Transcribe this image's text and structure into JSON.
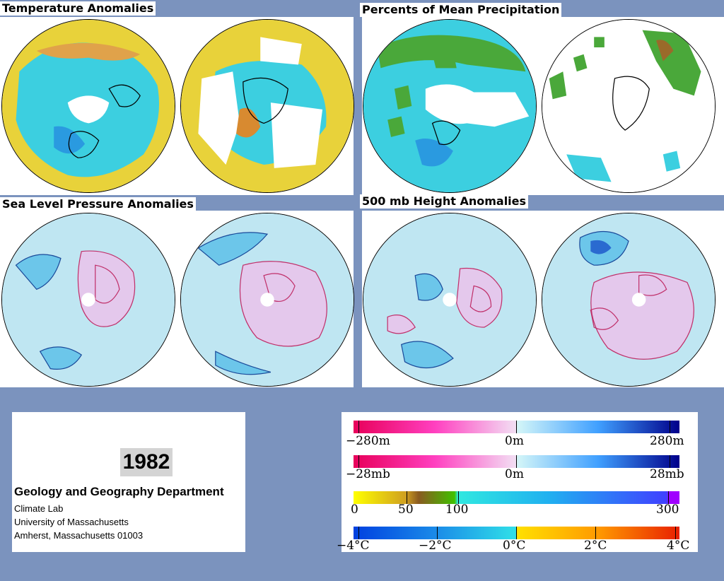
{
  "panels": {
    "temperature": {
      "title": "Temperature Anomalies"
    },
    "precipitation": {
      "title": "Percents of Mean Precipitation"
    },
    "slp": {
      "title": "Sea Level Pressure Anomalies"
    },
    "height500": {
      "title": "500 mb Height Anomalies"
    }
  },
  "info": {
    "year": "1982",
    "department": "Geology and Geography Department",
    "lines": [
      "Climate Lab",
      "University of Massachusetts",
      "Amherst, Massachusetts 01003"
    ]
  },
  "legend": {
    "height": {
      "labels": [
        "−280m",
        "0m",
        "280m"
      ]
    },
    "pressure": {
      "labels": [
        "−28mb",
        "0m",
        "28mb"
      ]
    },
    "precip": {
      "labels": [
        "0",
        "50",
        "100",
        "300"
      ]
    },
    "temp": {
      "labels": [
        "−4°C",
        "−2°C",
        "0°C",
        "2°C",
        "4°C"
      ]
    }
  },
  "colors": {
    "background": "#7b93be",
    "anomaly_neg_strong": "#e8005a",
    "anomaly_pos_strong": "#00008a",
    "temp_cold": "#0040e0",
    "temp_warm": "#e82000",
    "precip_dry": "#ffff00",
    "precip_mean": "#40c000",
    "precip_wet": "#a000ff"
  }
}
